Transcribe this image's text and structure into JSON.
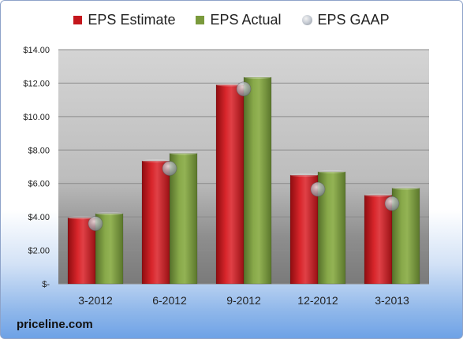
{
  "chart_data": {
    "type": "bar",
    "categories": [
      "3-2012",
      "6-2012",
      "9-2012",
      "12-2012",
      "3-2013"
    ],
    "series": [
      {
        "name": "EPS Estimate",
        "values": [
          3.95,
          7.35,
          11.9,
          6.5,
          5.3
        ],
        "color": "#c4161c"
      },
      {
        "name": "EPS Actual",
        "values": [
          4.2,
          7.8,
          12.35,
          6.7,
          5.72
        ],
        "color": "#7a9a3c"
      },
      {
        "name": "EPS GAAP",
        "values": [
          3.6,
          6.9,
          11.65,
          5.65,
          4.8
        ],
        "color": "#a9b0ba",
        "style": "marker"
      }
    ],
    "ylim": [
      0,
      14
    ],
    "yticks": [
      0,
      2,
      4,
      6,
      8,
      10,
      12,
      14
    ],
    "ytick_labels": [
      "$-",
      "$2.00",
      "$4.00",
      "$6.00",
      "$8.00",
      "$10.00",
      "$12.00",
      "$14.00"
    ],
    "grid": true,
    "legend_position": "top"
  },
  "footer": {
    "source": "priceline.com"
  }
}
